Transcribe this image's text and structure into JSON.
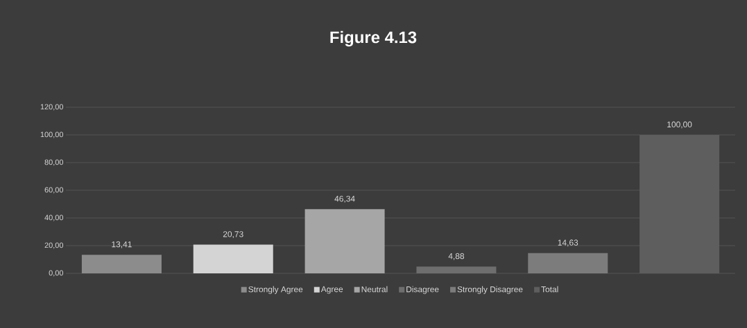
{
  "chart_data": {
    "type": "bar",
    "title": "Figure 4.13",
    "categories": [
      null,
      null,
      null,
      null,
      null,
      null
    ],
    "series": [
      {
        "name": "Strongly Agree",
        "color": "#8c8c8c",
        "values": [
          13.41,
          null,
          null,
          null,
          null,
          null
        ],
        "value_labels": [
          "13,41",
          null,
          null,
          null,
          null,
          null
        ]
      },
      {
        "name": "Agree",
        "color": "#d4d4d4",
        "values": [
          null,
          20.73,
          null,
          null,
          null,
          null
        ],
        "value_labels": [
          null,
          "20,73",
          null,
          null,
          null,
          null
        ]
      },
      {
        "name": "Neutral",
        "color": "#a6a6a6",
        "values": [
          null,
          null,
          46.34,
          null,
          null,
          null
        ],
        "value_labels": [
          null,
          null,
          "46,34",
          null,
          null,
          null
        ]
      },
      {
        "name": "Disagree",
        "color": "#6e6e6e",
        "values": [
          null,
          null,
          null,
          4.88,
          null,
          null
        ],
        "value_labels": [
          null,
          null,
          null,
          "4,88",
          null,
          null
        ]
      },
      {
        "name": "Strongly Disagree",
        "color": "#7c7c7c",
        "values": [
          null,
          null,
          null,
          null,
          14.63,
          null
        ],
        "value_labels": [
          null,
          null,
          null,
          null,
          "14,63",
          null
        ]
      },
      {
        "name": "Total",
        "color": "#5e5e5e",
        "values": [
          null,
          null,
          null,
          null,
          null,
          100.0
        ],
        "value_labels": [
          null,
          null,
          null,
          null,
          null,
          "100,00"
        ]
      }
    ],
    "ylim": [
      0,
      120
    ],
    "yticks": [
      {
        "value": 0,
        "label": "0,00"
      },
      {
        "value": 20,
        "label": "20,00"
      },
      {
        "value": 40,
        "label": "40,00"
      },
      {
        "value": 60,
        "label": "60,00"
      },
      {
        "value": 80,
        "label": "80,00"
      },
      {
        "value": 100,
        "label": "100,00"
      },
      {
        "value": 120,
        "label": "120,00"
      }
    ],
    "grid": "y",
    "legend": "bottom"
  }
}
